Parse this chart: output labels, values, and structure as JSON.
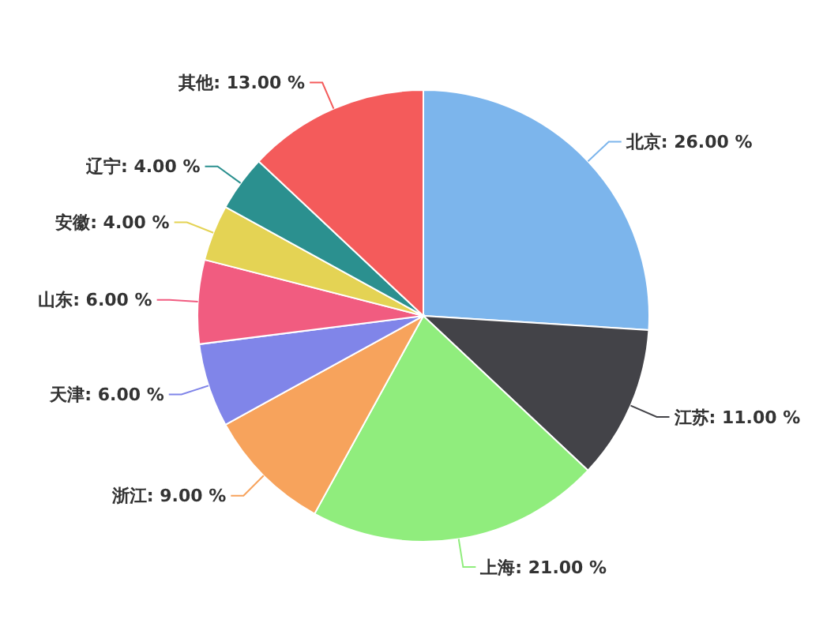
{
  "chart_data": {
    "type": "pie",
    "categories": [
      "北京",
      "江苏",
      "上海",
      "浙江",
      "天津",
      "山东",
      "安徽",
      "辽宁",
      "其他"
    ],
    "values": [
      26,
      11,
      21,
      9,
      6,
      6,
      4,
      4,
      13
    ],
    "value_labels": [
      "26.00 %",
      "11.00 %",
      "21.00 %",
      "9.00 %",
      "6.00 %",
      "6.00 %",
      "4.00 %",
      "4.00 %",
      "13.00 %"
    ],
    "colors": [
      "#7cb5ec",
      "#434348",
      "#90ed7d",
      "#f7a35c",
      "#8085e9",
      "#f15c80",
      "#e4d354",
      "#2b908f",
      "#f45b5b"
    ]
  }
}
